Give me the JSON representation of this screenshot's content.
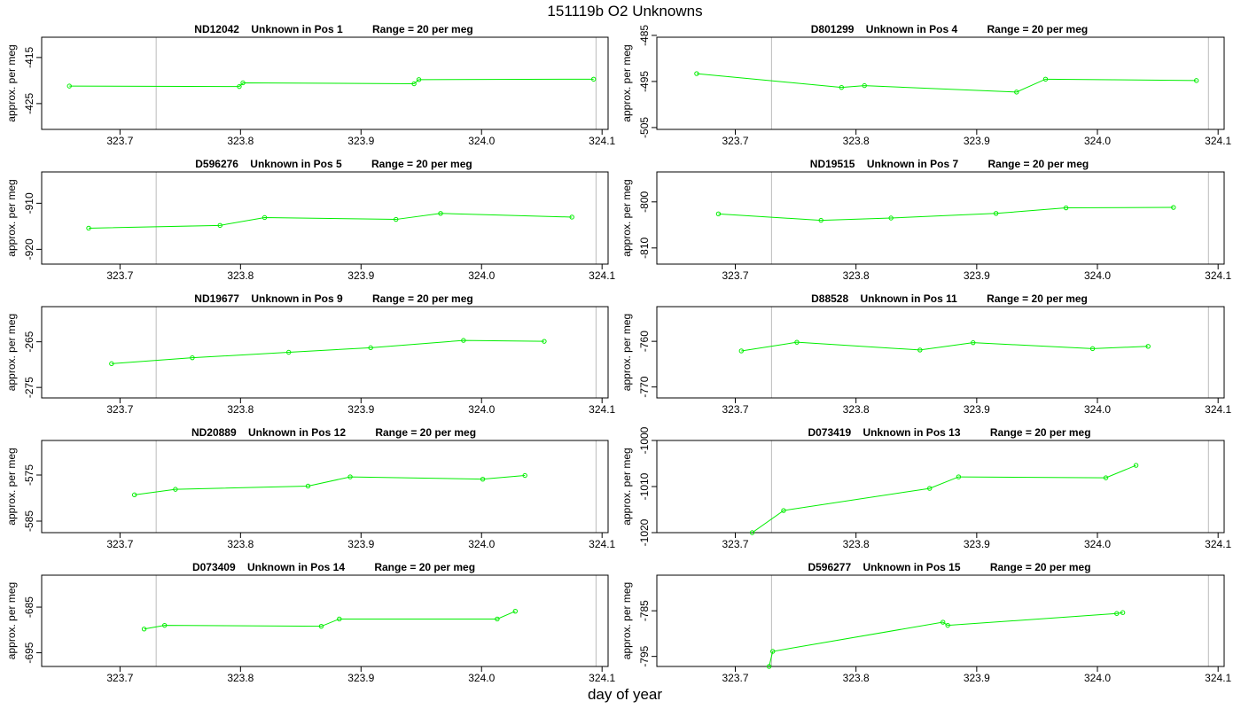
{
  "title": "151119b  O2 Unknowns",
  "xlabel": "day of year",
  "chart_data": [
    {
      "type": "line",
      "title": "ND12042    Unknown in Pos 1          Range = 20 per meg",
      "ylabel": "approx. per meg",
      "xlim": [
        323.635,
        324.105
      ],
      "ylim": [
        -430.6,
        -410.6
      ],
      "yticks": [
        -415,
        -425
      ],
      "xticks": [
        323.7,
        323.8,
        323.9,
        324.0,
        324.1
      ],
      "vlines": [
        323.73,
        324.095
      ],
      "x": [
        323.658,
        323.799,
        323.802,
        323.944,
        323.948,
        324.093
      ],
      "y": [
        -421.2,
        -421.3,
        -420.5,
        -420.7,
        -419.8,
        -419.7
      ]
    },
    {
      "type": "line",
      "title": "D801299    Unknown in Pos 4          Range = 20 per meg",
      "ylabel": "approx. per meg",
      "xlim": [
        323.635,
        324.105
      ],
      "ylim": [
        -505.4,
        -485.4
      ],
      "yticks": [
        -485,
        -495,
        -505
      ],
      "xticks": [
        323.7,
        323.8,
        323.9,
        324.0,
        324.1
      ],
      "vlines": [
        323.73,
        324.092
      ],
      "x": [
        323.668,
        323.788,
        323.807,
        323.933,
        323.957,
        324.082
      ],
      "y": [
        -493.3,
        -496.3,
        -495.9,
        -497.3,
        -494.5,
        -494.8
      ]
    },
    {
      "type": "line",
      "title": "D596276    Unknown in Pos 5          Range = 20 per meg",
      "ylabel": "approx. per meg",
      "xlim": [
        323.635,
        324.105
      ],
      "ylim": [
        -923.2,
        -903.2
      ],
      "yticks": [
        -910,
        -920
      ],
      "xticks": [
        323.7,
        323.8,
        323.9,
        324.0,
        324.1
      ],
      "vlines": [
        323.73,
        324.095
      ],
      "x": [
        323.674,
        323.783,
        323.82,
        323.929,
        323.966,
        324.075
      ],
      "y": [
        -915.4,
        -914.8,
        -913.1,
        -913.5,
        -912.2,
        -913.0
      ]
    },
    {
      "type": "line",
      "title": "ND19515    Unknown in Pos 7          Range = 20 per meg",
      "ylabel": "approx. per meg",
      "xlim": [
        323.635,
        324.105
      ],
      "ylim": [
        -813.5,
        -793.5
      ],
      "yticks": [
        -800,
        -810
      ],
      "xticks": [
        323.7,
        323.8,
        323.9,
        324.0,
        324.1
      ],
      "vlines": [
        323.73,
        324.092
      ],
      "x": [
        323.686,
        323.771,
        323.829,
        323.916,
        323.974,
        324.063
      ],
      "y": [
        -802.6,
        -804.0,
        -803.5,
        -802.5,
        -801.3,
        -801.2
      ]
    },
    {
      "type": "line",
      "title": "ND19677    Unknown in Pos 9          Range = 20 per meg",
      "ylabel": "approx. per meg",
      "xlim": [
        323.635,
        324.105
      ],
      "ylim": [
        -277.3,
        -257.3
      ],
      "yticks": [
        -265,
        -275
      ],
      "xticks": [
        323.7,
        323.8,
        323.9,
        324.0,
        324.1
      ],
      "vlines": [
        323.73,
        324.095
      ],
      "x": [
        323.693,
        323.76,
        323.84,
        323.908,
        323.985,
        324.052
      ],
      "y": [
        -269.8,
        -268.5,
        -267.3,
        -266.3,
        -264.7,
        -264.9
      ]
    },
    {
      "type": "line",
      "title": "D88528    Unknown in Pos 11          Range = 20 per meg",
      "ylabel": "approx. per meg",
      "xlim": [
        323.635,
        324.105
      ],
      "ylim": [
        -772.4,
        -752.4
      ],
      "yticks": [
        -760,
        -770
      ],
      "xticks": [
        323.7,
        323.8,
        323.9,
        324.0,
        324.1
      ],
      "vlines": [
        323.73,
        324.092
      ],
      "x": [
        323.705,
        323.751,
        323.853,
        323.897,
        323.996,
        324.042
      ],
      "y": [
        -762.1,
        -760.2,
        -761.9,
        -760.3,
        -761.6,
        -761.1
      ]
    },
    {
      "type": "line",
      "title": "ND20889    Unknown in Pos 12          Range = 20 per meg",
      "ylabel": "approx. per meg",
      "xlim": [
        323.635,
        324.105
      ],
      "ylim": [
        -587.5,
        -567.5
      ],
      "yticks": [
        -575,
        -585
      ],
      "xticks": [
        323.7,
        323.8,
        323.9,
        324.0,
        324.1
      ],
      "vlines": [
        323.73,
        324.095
      ],
      "x": [
        323.712,
        323.746,
        323.856,
        323.891,
        324.001,
        324.036
      ],
      "y": [
        -579.3,
        -578.1,
        -577.4,
        -575.4,
        -575.9,
        -575.1
      ]
    },
    {
      "type": "line",
      "title": "D073419    Unknown in Pos 13          Range = 20 per meg",
      "ylabel": "approx. per meg",
      "xlim": [
        323.635,
        324.105
      ],
      "ylim": [
        -1020.0,
        -1000.0
      ],
      "yticks": [
        -1000,
        -1010,
        -1020
      ],
      "xticks": [
        323.7,
        323.8,
        323.9,
        324.0,
        324.1
      ],
      "vlines": [
        323.73,
        324.092
      ],
      "x": [
        323.714,
        323.74,
        323.861,
        323.885,
        324.007,
        324.032
      ],
      "y": [
        -1020.0,
        -1015.2,
        -1010.4,
        -1007.9,
        -1008.1,
        -1005.4
      ]
    },
    {
      "type": "line",
      "title": "D073409    Unknown in Pos 14          Range = 20 per meg",
      "ylabel": "approx. per meg",
      "xlim": [
        323.635,
        324.105
      ],
      "ylim": [
        -698.0,
        -678.0
      ],
      "yticks": [
        -685,
        -695
      ],
      "xticks": [
        323.7,
        323.8,
        323.9,
        324.0,
        324.1
      ],
      "vlines": [
        323.73,
        324.095
      ],
      "x": [
        323.72,
        323.737,
        323.867,
        323.882,
        324.013,
        324.028
      ],
      "y": [
        -689.8,
        -689.0,
        -689.2,
        -687.6,
        -687.6,
        -685.9
      ]
    },
    {
      "type": "line",
      "title": "D596277    Unknown in Pos 15          Range = 20 per meg",
      "ylabel": "approx. per meg",
      "xlim": [
        323.635,
        324.105
      ],
      "ylim": [
        -797.2,
        -777.2
      ],
      "yticks": [
        -785,
        -795
      ],
      "xticks": [
        323.7,
        323.8,
        323.9,
        324.0,
        324.1
      ],
      "vlines": [
        323.73,
        324.092
      ],
      "x": [
        323.728,
        323.731,
        323.872,
        323.876,
        324.016,
        324.021
      ],
      "y": [
        -797.2,
        -793.9,
        -787.5,
        -788.2,
        -785.6,
        -785.4
      ]
    }
  ],
  "colors": {
    "series": "#00ee00",
    "axis": "#000000",
    "vline": "#bbbbbb"
  }
}
